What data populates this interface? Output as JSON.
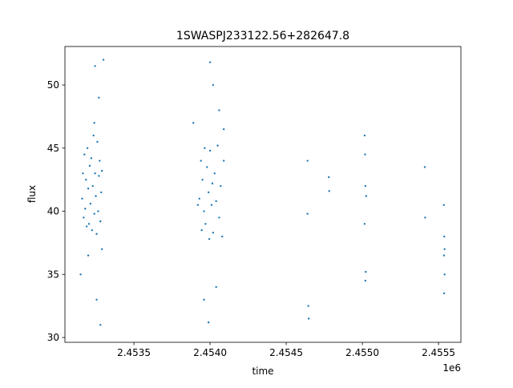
{
  "chart_data": {
    "type": "scatter",
    "title": "1SWASPJ233122.56+282647.8",
    "x_label": "time",
    "y_label": "flux",
    "x_offset_label": "1e6",
    "color": "#1f77b4",
    "x": [
      2453160,
      2453165,
      2453170,
      2453175,
      2453180,
      2453185,
      2453190,
      2453195,
      2453200,
      2453205,
      2453210,
      2453215,
      2453220,
      2453225,
      2453230,
      2453235,
      2453240,
      2453245,
      2453250,
      2453255,
      2453260,
      2453265,
      2453270,
      2453275,
      2453280,
      2453285,
      2453290,
      2453245,
      2453270,
      2453255,
      2453280,
      2453300,
      2453240,
      2453200,
      2453150,
      2453290,
      2453930,
      2453940,
      2453945,
      2453950,
      2453960,
      2453965,
      2453970,
      2453980,
      2453990,
      2453995,
      2454000,
      2454010,
      2454015,
      2454020,
      2454030,
      2454040,
      2454050,
      2454060,
      2454070,
      2454080,
      2454090,
      2454000,
      2454020,
      2454060,
      2454090,
      2453890,
      2453960,
      2453990,
      2454040,
      2453920,
      2454640,
      2454640,
      2454645,
      2454648,
      2454780,
      2454782,
      2455015,
      2455018,
      2455020,
      2455015,
      2455022,
      2455020,
      2455025,
      2455410,
      2455412,
      2455535,
      2455538,
      2455536,
      2455540,
      2455537,
      2455540
    ],
    "values": [
      41,
      43,
      39.5,
      44.5,
      40.2,
      42.5,
      38.8,
      45,
      41.8,
      39,
      43.6,
      40.6,
      44.2,
      38.5,
      42,
      46,
      39.8,
      43,
      41.2,
      38.2,
      45.5,
      40,
      42.8,
      44,
      39.2,
      41.5,
      43.2,
      51.5,
      49,
      33,
      31,
      52,
      47,
      36.5,
      35,
      37,
      41,
      44,
      38.5,
      42.5,
      40,
      45,
      39,
      43.5,
      41.5,
      37.8,
      44.8,
      40.5,
      42.2,
      38.3,
      43,
      40.8,
      45.2,
      39.5,
      42,
      38,
      44,
      51.8,
      50,
      48,
      46.5,
      47,
      33,
      31.2,
      34,
      40.5,
      44,
      39.8,
      32.5,
      31.5,
      42.7,
      41.6,
      46,
      44.5,
      42,
      39,
      35.2,
      34.5,
      41.2,
      43.5,
      39.5,
      40.5,
      38,
      36.5,
      35,
      33.5,
      37
    ],
    "xlim": [
      2453047,
      2455647
    ],
    "ylim": [
      29.62,
      53.05
    ],
    "xticks": [
      {
        "value": 2453500,
        "label": "2.4535"
      },
      {
        "value": 2454000,
        "label": "2.4540"
      },
      {
        "value": 2454500,
        "label": "2.4545"
      },
      {
        "value": 2455000,
        "label": "2.4550"
      },
      {
        "value": 2455500,
        "label": "2.4555"
      }
    ],
    "yticks": [
      30,
      35,
      40,
      45,
      50
    ]
  }
}
